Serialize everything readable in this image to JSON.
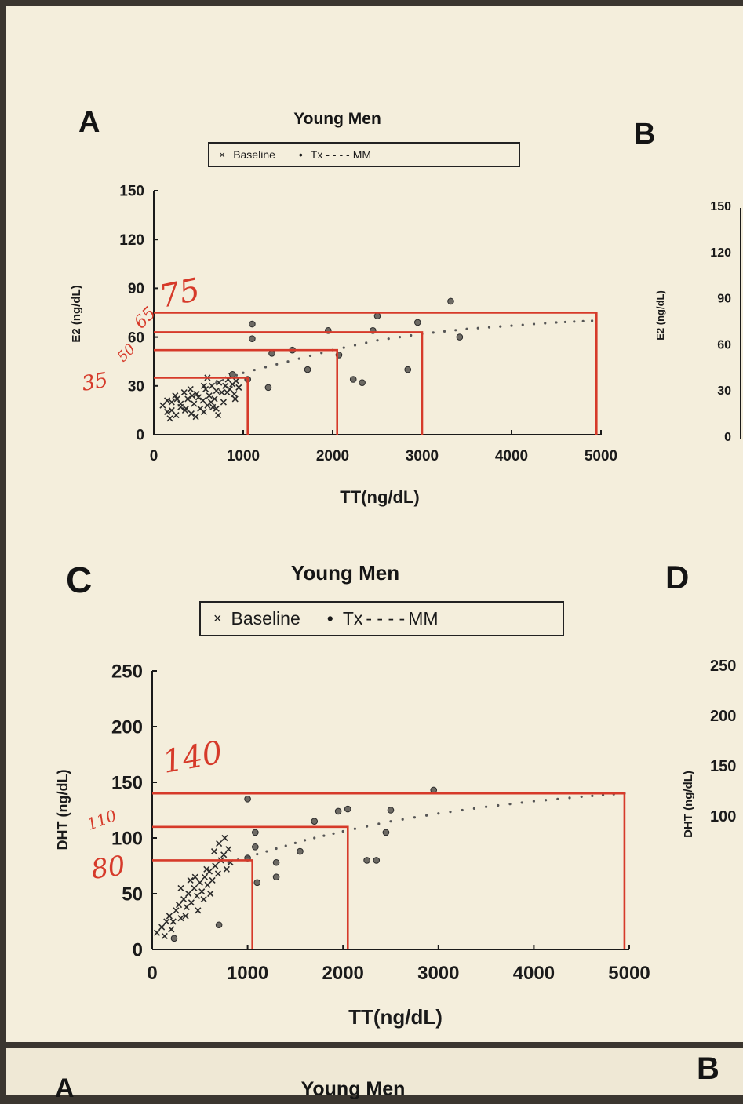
{
  "panels": {
    "a_letter": "A",
    "b_letter": "B",
    "c_letter": "C",
    "d_letter": "D",
    "bottom_a_letter": "A",
    "bottom_b_letter": "B"
  },
  "titles": {
    "top": "Young Men",
    "middle": "Young Men",
    "bottom": "Young Men"
  },
  "legend": {
    "top": {
      "baseline": "Baseline",
      "tx": "Tx",
      "mm": "MM"
    },
    "middle": {
      "baseline": "Baseline",
      "tx": "Tx",
      "mm": "MM"
    }
  },
  "side_panels": {
    "b_ylabel": "E2 (ng/dL)",
    "b_ticks": [
      "150",
      "120",
      "90",
      "60",
      "30",
      "0"
    ],
    "d_ylabel": "DHT (ng/dL)",
    "d_ticks": [
      "250",
      "200",
      "150",
      "100"
    ]
  },
  "annotations": {
    "top": [
      "75",
      "65",
      "50",
      "35"
    ],
    "middle": [
      "140",
      "110",
      "80"
    ]
  },
  "colors": {
    "paper": "#f4eedc",
    "ink": "#1a1a1a",
    "red_pen": "#d63a2a",
    "points": "#333333"
  },
  "chart_data": [
    {
      "type": "scatter",
      "title": "Young Men",
      "xlabel": "TT(ng/dL)",
      "ylabel": "E2 (ng/dL)",
      "xlim": [
        0,
        5000
      ],
      "ylim": [
        0,
        150
      ],
      "xticks": [
        0,
        1000,
        2000,
        3000,
        4000,
        5000
      ],
      "yticks": [
        0,
        30,
        60,
        90,
        120,
        150
      ],
      "legend": [
        "Baseline",
        "Tx",
        "MM"
      ],
      "legend_position": "top",
      "series": [
        {
          "name": "Baseline",
          "marker": "x",
          "points": [
            [
              100,
              18
            ],
            [
              150,
              14
            ],
            [
              200,
              20
            ],
            [
              250,
              12
            ],
            [
              300,
              17
            ],
            [
              350,
              15
            ],
            [
              380,
              22
            ],
            [
              420,
              13
            ],
            [
              450,
              19
            ],
            [
              480,
              25
            ],
            [
              520,
              16
            ],
            [
              550,
              21
            ],
            [
              580,
              28
            ],
            [
              600,
              18
            ],
            [
              620,
              24
            ],
            [
              650,
              30
            ],
            [
              680,
              22
            ],
            [
              700,
              27
            ],
            [
              730,
              32
            ],
            [
              760,
              26
            ],
            [
              800,
              30
            ],
            [
              830,
              34
            ],
            [
              850,
              28
            ],
            [
              880,
              31
            ],
            [
              900,
              25
            ],
            [
              920,
              33
            ],
            [
              950,
              29
            ],
            [
              180,
              10
            ],
            [
              260,
              22
            ],
            [
              340,
              26
            ],
            [
              410,
              28
            ],
            [
              470,
              11
            ],
            [
              560,
              14
            ],
            [
              640,
              20
            ],
            [
              720,
              12
            ],
            [
              300,
              19
            ],
            [
              200,
              15
            ],
            [
              150,
              21
            ],
            [
              500,
              23
            ],
            [
              600,
              35
            ],
            [
              660,
              17
            ],
            [
              780,
              20
            ],
            [
              870,
              36
            ],
            [
              910,
              22
            ],
            [
              430,
              24
            ],
            [
              360,
              16
            ],
            [
              240,
              24
            ],
            [
              560,
              30
            ],
            [
              700,
              16
            ],
            [
              820,
              26
            ]
          ]
        },
        {
          "name": "Tx",
          "marker": "dot",
          "points": [
            [
              1100,
              68
            ],
            [
              1100,
              59
            ],
            [
              1320,
              50
            ],
            [
              1550,
              52
            ],
            [
              1720,
              40
            ],
            [
              1950,
              64
            ],
            [
              2070,
              49
            ],
            [
              2230,
              34
            ],
            [
              2330,
              32
            ],
            [
              2450,
              64
            ],
            [
              2500,
              73
            ],
            [
              2840,
              40
            ],
            [
              2950,
              69
            ],
            [
              3320,
              82
            ],
            [
              3420,
              60
            ],
            [
              1280,
              29
            ],
            [
              1050,
              34
            ],
            [
              880,
              37
            ]
          ]
        },
        {
          "name": "MM",
          "line": "dotted",
          "points": [
            [
              700,
              32
            ],
            [
              1000,
              38
            ],
            [
              1500,
              45
            ],
            [
              2000,
              52
            ],
            [
              2500,
              58
            ],
            [
              3000,
              62
            ],
            [
              3500,
              65
            ],
            [
              4000,
              67
            ],
            [
              4500,
              69
            ],
            [
              4900,
              70
            ]
          ]
        }
      ]
    },
    {
      "type": "scatter",
      "title": "Young Men",
      "xlabel": "TT(ng/dL)",
      "ylabel": "DHT (ng/dL)",
      "xlim": [
        0,
        5000
      ],
      "ylim": [
        0,
        250
      ],
      "xticks": [
        0,
        1000,
        2000,
        3000,
        4000,
        5000
      ],
      "yticks": [
        0,
        50,
        100,
        150,
        200,
        250
      ],
      "legend": [
        "Baseline",
        "Tx",
        "MM"
      ],
      "legend_position": "top",
      "series": [
        {
          "name": "Baseline",
          "marker": "x",
          "points": [
            [
              50,
              15
            ],
            [
              100,
              20
            ],
            [
              130,
              12
            ],
            [
              180,
              30
            ],
            [
              220,
              25
            ],
            [
              250,
              35
            ],
            [
              280,
              40
            ],
            [
              300,
              28
            ],
            [
              330,
              45
            ],
            [
              360,
              38
            ],
            [
              380,
              50
            ],
            [
              410,
              42
            ],
            [
              440,
              55
            ],
            [
              470,
              48
            ],
            [
              500,
              60
            ],
            [
              520,
              52
            ],
            [
              550,
              65
            ],
            [
              580,
              58
            ],
            [
              600,
              70
            ],
            [
              630,
              62
            ],
            [
              660,
              75
            ],
            [
              690,
              68
            ],
            [
              720,
              80
            ],
            [
              750,
              85
            ],
            [
              780,
              72
            ],
            [
              800,
              90
            ],
            [
              820,
              78
            ],
            [
              700,
              95
            ],
            [
              650,
              88
            ],
            [
              760,
              100
            ],
            [
              400,
              62
            ],
            [
              480,
              35
            ],
            [
              540,
              45
            ],
            [
              610,
              50
            ],
            [
              300,
              55
            ],
            [
              200,
              18
            ],
            [
              150,
              25
            ],
            [
              350,
              30
            ],
            [
              450,
              65
            ],
            [
              570,
              72
            ]
          ]
        },
        {
          "name": "Tx",
          "marker": "dot",
          "points": [
            [
              700,
              22
            ],
            [
              1000,
              82
            ],
            [
              1080,
              92
            ],
            [
              1080,
              105
            ],
            [
              1100,
              60
            ],
            [
              1300,
              78
            ],
            [
              1300,
              65
            ],
            [
              1550,
              88
            ],
            [
              1700,
              115
            ],
            [
              1950,
              124
            ],
            [
              2050,
              126
            ],
            [
              2250,
              80
            ],
            [
              2350,
              80
            ],
            [
              2450,
              105
            ],
            [
              2500,
              125
            ],
            [
              2950,
              143
            ],
            [
              1000,
              135
            ],
            [
              230,
              10
            ]
          ]
        },
        {
          "name": "MM",
          "line": "dotted",
          "points": [
            [
              800,
              78
            ],
            [
              1200,
              88
            ],
            [
              1600,
              98
            ],
            [
              2000,
              106
            ],
            [
              2500,
              115
            ],
            [
              3000,
              122
            ],
            [
              3500,
              128
            ],
            [
              4000,
              133
            ],
            [
              4500,
              137
            ],
            [
              4950,
              140
            ]
          ]
        }
      ]
    }
  ]
}
